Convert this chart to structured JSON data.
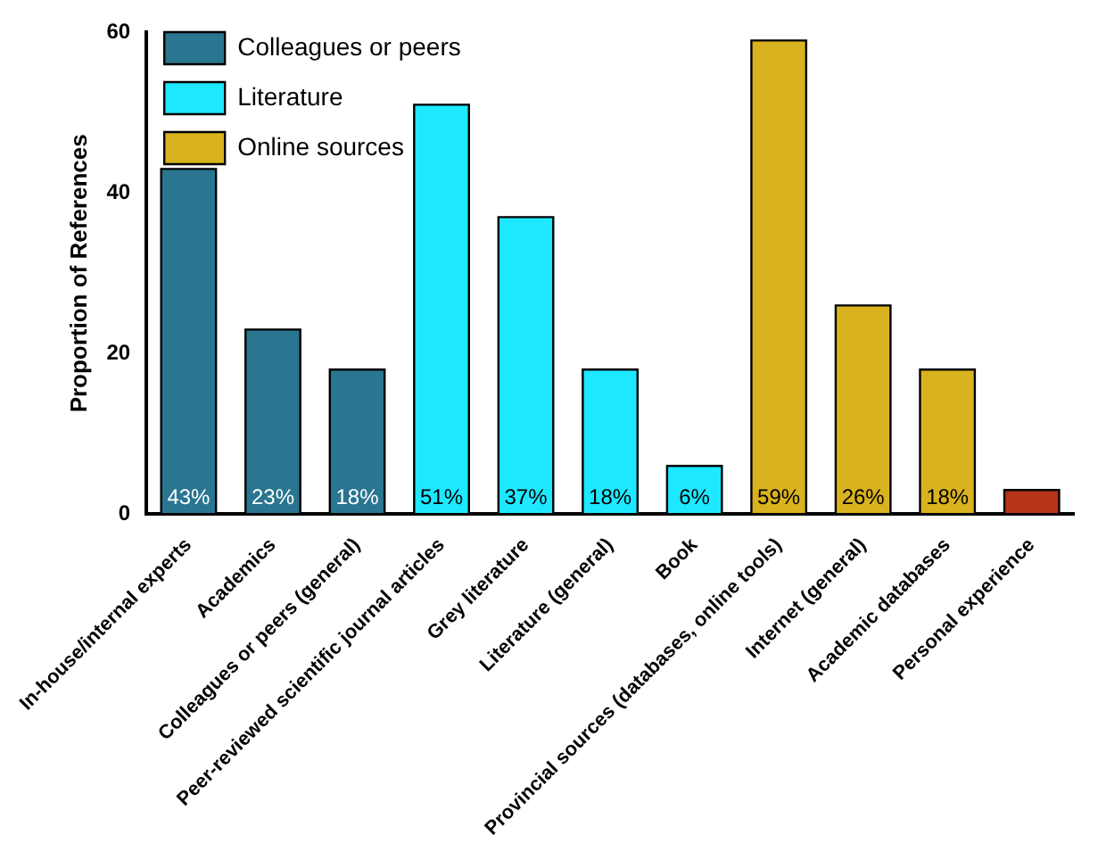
{
  "chart_data": {
    "type": "bar",
    "ylabel": "Proportion of References",
    "categories": [
      "In-house/internal experts",
      "Academics",
      "Colleagues or peers (general)",
      "Peer-reviewed scientific journal articles",
      "Grey literature",
      "Literature (general)",
      "Book",
      "Provincial sources (databases, online tools)",
      "Internet (general)",
      "Academic databases",
      "Personal experience"
    ],
    "series": [
      {
        "name": "Colleagues or peers",
        "color": "#2a7590",
        "values": [
          43,
          23,
          18,
          null,
          null,
          null,
          null,
          null,
          null,
          null,
          null
        ],
        "value_labels": [
          "43%",
          "23%",
          "18%",
          null,
          null,
          null,
          null,
          null,
          null,
          null,
          null
        ]
      },
      {
        "name": "Literature",
        "color": "#1ee8ff",
        "values": [
          null,
          null,
          null,
          51,
          37,
          18,
          6,
          null,
          null,
          null,
          null
        ],
        "value_labels": [
          null,
          null,
          null,
          "51%",
          "37%",
          "18%",
          "6%",
          null,
          null,
          null,
          null
        ]
      },
      {
        "name": "Online sources",
        "color": "#d9b21f",
        "values": [
          null,
          null,
          null,
          null,
          null,
          null,
          null,
          59,
          26,
          18,
          null
        ],
        "value_labels": [
          null,
          null,
          null,
          null,
          null,
          null,
          null,
          "59%",
          "26%",
          "18%",
          null
        ]
      },
      {
        "color": "#b5341a",
        "values": [
          null,
          null,
          null,
          null,
          null,
          null,
          null,
          null,
          null,
          null,
          3
        ]
      }
    ],
    "ylim": [
      0,
      60
    ],
    "yticks": [
      0,
      20,
      40,
      60
    ],
    "grid": false,
    "legend": "top left"
  }
}
